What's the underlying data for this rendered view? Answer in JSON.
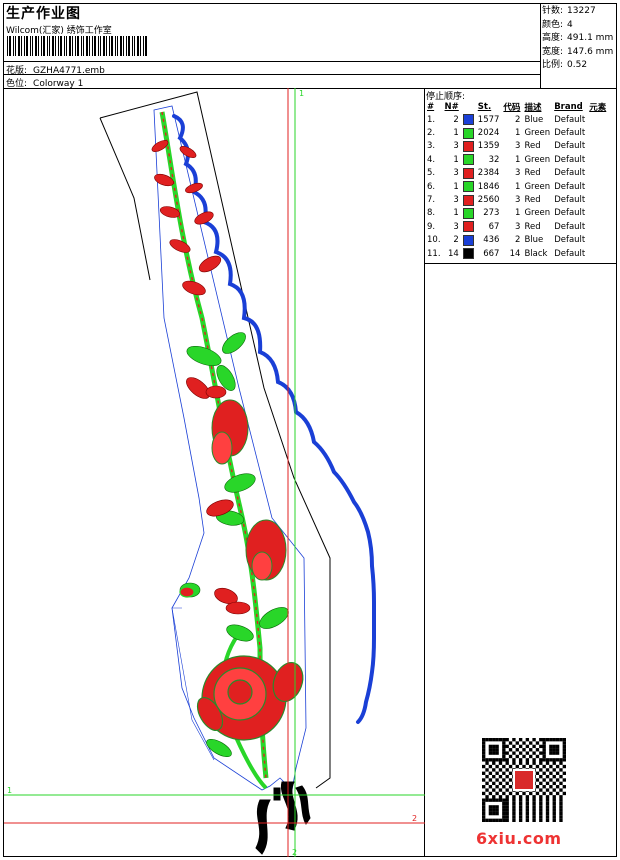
{
  "header": {
    "title": "生产作业图",
    "company": "Wilcom(汇家) 绣饰工作室",
    "pattern_label": "花版:",
    "pattern_value": "GZHA4771.emb",
    "colorway_label": "色位:",
    "colorway_value": "Colorway 1"
  },
  "stats": [
    {
      "label": "针数:",
      "value": "13227"
    },
    {
      "label": "颜色:",
      "value": "4"
    },
    {
      "label": "高度:",
      "value": "491.1 mm"
    },
    {
      "label": "宽度:",
      "value": "147.6 mm"
    },
    {
      "label": "比例:",
      "value": "0.52"
    }
  ],
  "stop_sequence": {
    "title": "停止顺序:",
    "headers": [
      "#",
      "N#",
      "St.",
      "代码",
      "描述",
      "Brand",
      "元素"
    ],
    "rows": [
      {
        "idx": "1.",
        "n": "2",
        "color": "#1a3fd6",
        "st": "1577",
        "code": "2",
        "desc": "Blue",
        "brand": "Default"
      },
      {
        "idx": "2.",
        "n": "1",
        "color": "#29d629",
        "st": "2024",
        "code": "1",
        "desc": "Green",
        "brand": "Default"
      },
      {
        "idx": "3.",
        "n": "3",
        "color": "#e02020",
        "st": "1359",
        "code": "3",
        "desc": "Red",
        "brand": "Default"
      },
      {
        "idx": "4.",
        "n": "1",
        "color": "#29d629",
        "st": "32",
        "code": "1",
        "desc": "Green",
        "brand": "Default"
      },
      {
        "idx": "5.",
        "n": "3",
        "color": "#e02020",
        "st": "2384",
        "code": "3",
        "desc": "Red",
        "brand": "Default"
      },
      {
        "idx": "6.",
        "n": "1",
        "color": "#29d629",
        "st": "1846",
        "code": "1",
        "desc": "Green",
        "brand": "Default"
      },
      {
        "idx": "7.",
        "n": "3",
        "color": "#e02020",
        "st": "2560",
        "code": "3",
        "desc": "Red",
        "brand": "Default"
      },
      {
        "idx": "8.",
        "n": "1",
        "color": "#29d629",
        "st": "273",
        "code": "1",
        "desc": "Green",
        "brand": "Default"
      },
      {
        "idx": "9.",
        "n": "3",
        "color": "#e02020",
        "st": "67",
        "code": "3",
        "desc": "Red",
        "brand": "Default"
      },
      {
        "idx": "10.",
        "n": "2",
        "color": "#1a3fd6",
        "st": "436",
        "code": "2",
        "desc": "Blue",
        "brand": "Default"
      },
      {
        "idx": "11.",
        "n": "14",
        "color": "#000000",
        "st": "667",
        "code": "14",
        "desc": "Black",
        "brand": "Default"
      }
    ]
  },
  "guides": {
    "v_green_label": "1",
    "v_red_label": "2",
    "h_green_label": "1",
    "h_red_label": "2"
  },
  "watermark": {
    "text": "6xiu.com",
    "color": "#e33333"
  }
}
